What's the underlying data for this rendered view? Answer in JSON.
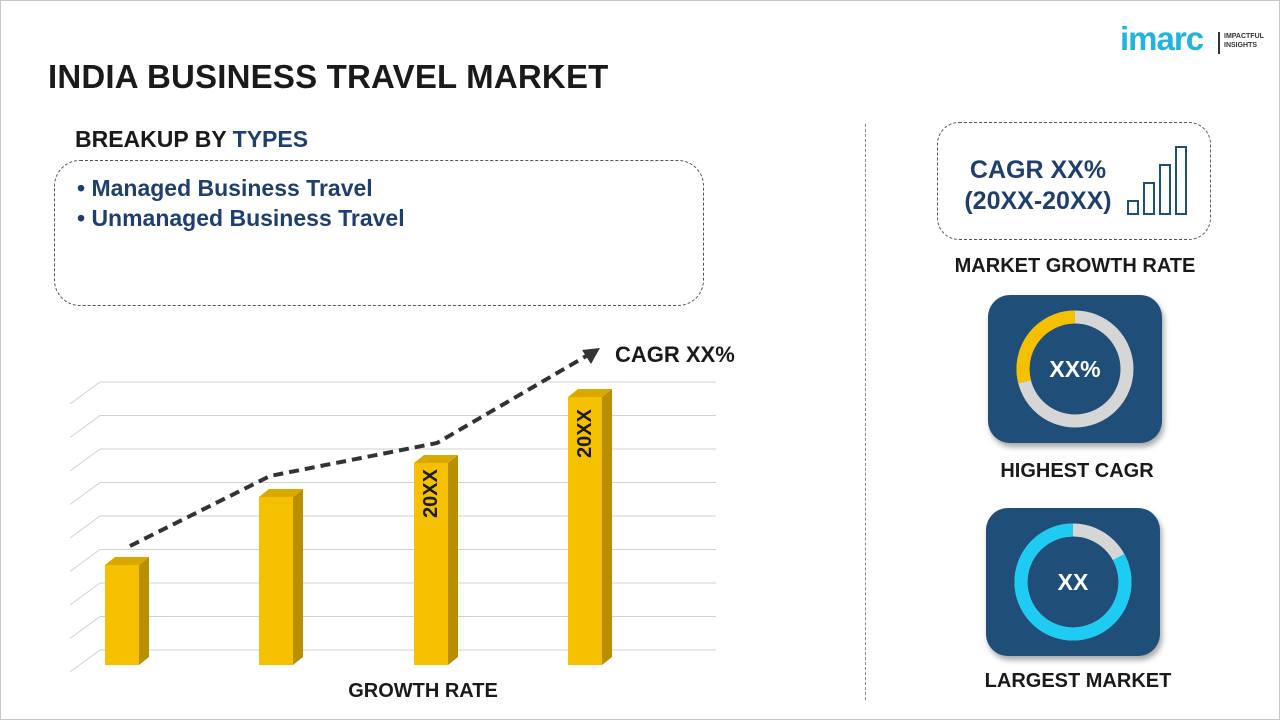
{
  "header": {
    "title": "INDIA BUSINESS TRAVEL MARKET"
  },
  "logo": {
    "text": "imarc",
    "tagline_1": "IMPACTFUL",
    "tagline_2": "INSIGHTS"
  },
  "breakup": {
    "heading_prefix": "BREAKUP BY",
    "heading_accent": "TYPES",
    "items": [
      "• Managed Business Travel",
      "• Unmanaged Business Travel"
    ]
  },
  "chart": {
    "cagr_label": "CAGR XX%",
    "x_label": "GROWTH RATE",
    "bar_labels": [
      "",
      "",
      "20XX",
      "20XX"
    ],
    "bar_color": "#f5c000"
  },
  "market_growth": {
    "line1": "CAGR XX%",
    "line2": "(20XX-20XX)",
    "label": "MARKET GROWTH RATE"
  },
  "highest_cagr": {
    "value": "XX%",
    "label": "HIGHEST CAGR",
    "fill_fraction": 0.29,
    "accent": "#f5c000"
  },
  "largest_market": {
    "value": "XX",
    "label": "LARGEST MARKET",
    "fill_fraction": 0.83,
    "accent": "#1ecbf2"
  },
  "colors": {
    "navy": "#1f4e79",
    "text_blue": "#1f3f6e",
    "logo": "#1fb5e0"
  }
}
